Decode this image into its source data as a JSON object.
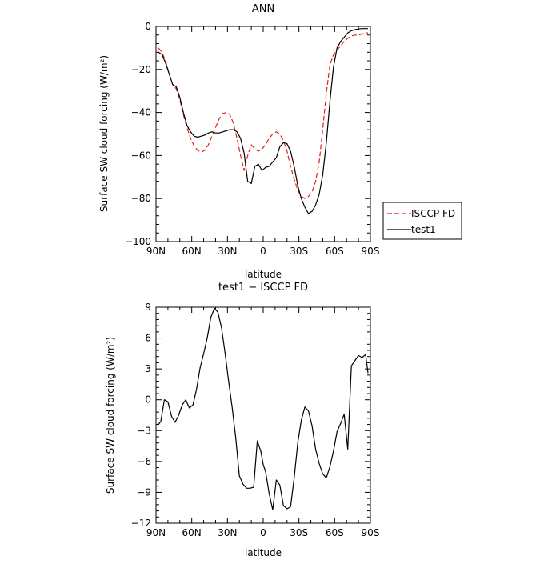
{
  "chart_data": [
    {
      "type": "line",
      "title": "ANN",
      "xlabel": "latitude",
      "ylabel": "Surface SW cloud forcing (W/m²)",
      "xlim": [
        90,
        -90
      ],
      "ylim": [
        -100,
        0
      ],
      "x_ticks": [
        90,
        60,
        30,
        0,
        -30,
        -60,
        -90
      ],
      "x_tick_labels": [
        "90N",
        "60N",
        "30N",
        "0",
        "30S",
        "60S",
        "90S"
      ],
      "y_ticks": [
        0,
        -20,
        -40,
        -60,
        -80,
        -100
      ],
      "y_tick_labels": [
        "0",
        "−20",
        "−40",
        "−60",
        "−80",
        "−100"
      ],
      "legend_position": "right",
      "series": [
        {
          "name": "ISCCP FD",
          "color": "#e0201c",
          "style": "dashed",
          "x": [
            88,
            85,
            82,
            79,
            76,
            73,
            70,
            67,
            64,
            61,
            58,
            55,
            52,
            49,
            46,
            43,
            40,
            37,
            34,
            31,
            28,
            25,
            22,
            19,
            16,
            13,
            10,
            7,
            4,
            1,
            -2,
            -5,
            -8,
            -11,
            -14,
            -17,
            -20,
            -23,
            -26,
            -29,
            -32,
            -35,
            -38,
            -41,
            -44,
            -47,
            -50,
            -53,
            -56,
            -59,
            -62,
            -65,
            -68,
            -71,
            -74,
            -77,
            -80,
            -83,
            -86,
            -88
          ],
          "y": [
            -10,
            -12,
            -16,
            -22,
            -27,
            -29,
            -34,
            -41,
            -47,
            -52,
            -55.5,
            -57.5,
            -58.5,
            -57.5,
            -55,
            -51,
            -47,
            -43,
            -40.5,
            -40,
            -41,
            -45,
            -52,
            -60,
            -67,
            -60,
            -55,
            -57,
            -58,
            -57,
            -55,
            -52,
            -50,
            -49,
            -50,
            -53,
            -58,
            -65,
            -71,
            -76,
            -79,
            -80,
            -79,
            -77,
            -72,
            -63,
            -48,
            -31,
            -18,
            -13,
            -11,
            -9,
            -7,
            -5.5,
            -4.5,
            -4,
            -4,
            -3.5,
            -3,
            -3
          ]
        },
        {
          "name": "test1",
          "color": "#000000",
          "style": "solid",
          "x": [
            88,
            85,
            82,
            79,
            76,
            73,
            70,
            67,
            64,
            61,
            58,
            55,
            52,
            49,
            46,
            43,
            40,
            37,
            34,
            31,
            28,
            25,
            22,
            19,
            16,
            13,
            10,
            7,
            4,
            1,
            -2,
            -5,
            -8,
            -11,
            -14,
            -17,
            -20,
            -23,
            -26,
            -29,
            -32,
            -35,
            -38,
            -41,
            -44,
            -47,
            -50,
            -53,
            -56,
            -59,
            -62,
            -65,
            -68,
            -71,
            -74,
            -77,
            -80,
            -83,
            -86,
            -88
          ],
          "y": [
            -12,
            -13,
            -17,
            -22,
            -27,
            -28,
            -33,
            -40,
            -46,
            -49,
            -51,
            -51.5,
            -51,
            -50.5,
            -49.5,
            -49,
            -49.5,
            -49.5,
            -49,
            -48.5,
            -48,
            -48,
            -49,
            -52,
            -59,
            -72,
            -73,
            -65,
            -64,
            -67,
            -65.5,
            -65,
            -63,
            -61,
            -56,
            -54,
            -54.5,
            -58,
            -65,
            -74,
            -80,
            -84,
            -87,
            -86,
            -83,
            -78,
            -69,
            -54,
            -35,
            -19,
            -10,
            -7,
            -5,
            -3,
            -2,
            -1.5,
            -1.2,
            -1,
            -1,
            -1
          ]
        }
      ]
    },
    {
      "type": "line",
      "title": "test1 − ISCCP FD",
      "xlabel": "latitude",
      "ylabel": "Surface SW cloud forcing (W/m²)",
      "xlim": [
        90,
        -90
      ],
      "ylim": [
        -12,
        9
      ],
      "x_ticks": [
        90,
        60,
        30,
        0,
        -30,
        -60,
        -90
      ],
      "x_tick_labels": [
        "90N",
        "60N",
        "30N",
        "0",
        "30S",
        "60S",
        "90S"
      ],
      "y_ticks": [
        9,
        6,
        3,
        0,
        -3,
        -6,
        -9,
        -12
      ],
      "y_tick_labels": [
        "9",
        "6",
        "3",
        "0",
        "−3",
        "−6",
        "−9",
        "−12"
      ],
      "series": [
        {
          "color": "#000000",
          "style": "solid",
          "x": [
            88,
            86,
            83,
            80,
            77,
            74,
            71,
            68,
            65,
            62,
            59,
            56,
            53,
            50,
            47,
            44,
            41,
            38,
            35,
            32,
            29,
            26,
            23,
            20,
            17,
            14,
            11,
            8,
            5,
            2,
            0,
            -2,
            -5,
            -8,
            -11,
            -14,
            -17,
            -20,
            -23,
            -26,
            -29,
            -32,
            -35,
            -38,
            -41,
            -44,
            -47,
            -50,
            -53,
            -56,
            -59,
            -62,
            -65,
            -68,
            -71,
            -74,
            -77,
            -80,
            -83,
            -86,
            -88
          ],
          "y": [
            -2.4,
            -2.1,
            0,
            -0.2,
            -1.6,
            -2.2,
            -1.5,
            -0.5,
            0,
            -0.8,
            -0.5,
            1,
            3.1,
            4.5,
            6,
            8,
            8.9,
            8.5,
            7,
            4.5,
            1.8,
            -0.8,
            -3.8,
            -7.4,
            -8.2,
            -8.6,
            -8.6,
            -8.5,
            -4,
            -5,
            -6.3,
            -7,
            -9.1,
            -10.7,
            -7.8,
            -8.3,
            -10.3,
            -10.6,
            -10.4,
            -7.6,
            -4.2,
            -2,
            -0.7,
            -1.1,
            -2.5,
            -4.8,
            -6.2,
            -7.2,
            -7.6,
            -6.5,
            -5,
            -3.1,
            -2.3,
            -1.4,
            -4.8,
            3.3,
            3.8,
            4.3,
            4.1,
            4.4,
            2.6
          ]
        }
      ]
    }
  ]
}
